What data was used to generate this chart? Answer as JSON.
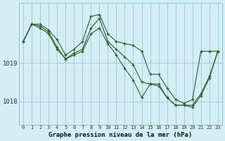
{
  "xlabel": "Graphe pression niveau de la mer (hPa)",
  "background_color": "#d4eef5",
  "grid_color": "#aac9d4",
  "line_color": "#2a5e2a",
  "ylim": [
    1017.4,
    1020.55
  ],
  "yticks": [
    1018,
    1019
  ],
  "x_ticks": [
    0,
    1,
    2,
    3,
    4,
    5,
    6,
    7,
    8,
    9,
    10,
    11,
    12,
    13,
    14,
    15,
    16,
    17,
    18,
    19,
    20,
    21,
    22,
    23
  ],
  "series": [
    [
      1019.55,
      1020.0,
      1020.0,
      1019.85,
      1019.6,
      1019.2,
      1019.35,
      1019.55,
      1020.2,
      1020.25,
      1019.75,
      1019.55,
      1019.5,
      1019.45,
      1019.3,
      1018.7,
      1018.7,
      1018.35,
      1018.05,
      1017.95,
      1018.05,
      1019.3,
      1019.3,
      1019.3
    ],
    [
      1019.55,
      1020.0,
      1019.95,
      1019.8,
      1019.4,
      1019.1,
      1019.25,
      1019.35,
      1019.9,
      1020.15,
      1019.55,
      1019.35,
      1019.15,
      1018.95,
      1018.5,
      1018.45,
      1018.4,
      1018.1,
      1017.9,
      1017.9,
      1017.9,
      1018.2,
      1018.65,
      1019.3
    ],
    [
      1019.55,
      1020.0,
      1019.9,
      1019.75,
      1019.35,
      1019.1,
      1019.2,
      1019.3,
      1019.75,
      1019.9,
      1019.5,
      1019.2,
      1018.85,
      1018.55,
      1018.1,
      1018.45,
      1018.45,
      1018.1,
      1017.9,
      1017.9,
      1017.85,
      1018.15,
      1018.6,
      1019.3
    ]
  ]
}
